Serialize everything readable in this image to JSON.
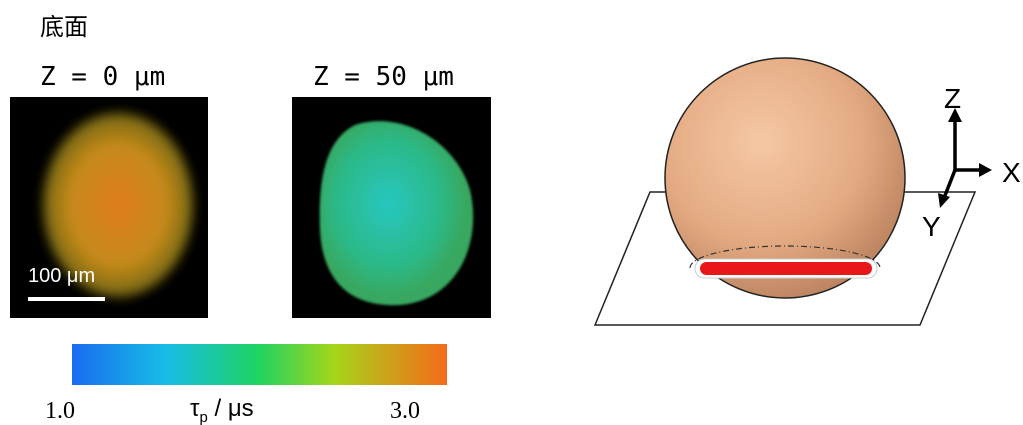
{
  "header": {
    "title": "底面"
  },
  "panels": [
    {
      "label": "Z = 0 μm",
      "scalebar": "100 μm"
    },
    {
      "label": "Z = 50 μm"
    }
  ],
  "colorbar": {
    "min_label": "1.0",
    "max_label": "3.0",
    "symbol": "τ",
    "subscript": "p",
    "unit": " / μs"
  },
  "axes": {
    "z": "Z",
    "x": "X",
    "y": "Y"
  }
}
